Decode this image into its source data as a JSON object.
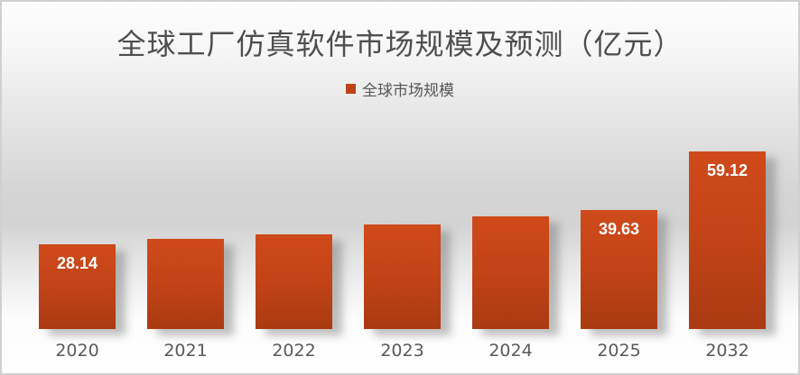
{
  "chart": {
    "title": "全球工厂仿真软件市场规模及预测（亿元）",
    "legend_label": "全球市场规模"
  },
  "colors": {
    "bar_gradient_top": "#cf4a1b",
    "bar_gradient_bottom": "#aa3a12",
    "legend_swatch": "#bc4318",
    "title_text": "#4e4e4e",
    "axis_text": "#5a5a5a",
    "value_label_text": "#ffffff",
    "frame_border": "#d0d0d0"
  },
  "chart_data": {
    "type": "bar",
    "title": "全球工厂仿真软件市场规模及预测（亿元）",
    "legend": [
      "全球市场规模"
    ],
    "legend_position": "top-center",
    "categories": [
      "2020",
      "2021",
      "2022",
      "2023",
      "2024",
      "2025",
      "2032"
    ],
    "values": [
      28.14,
      30.2,
      31.5,
      35.0,
      37.5,
      39.63,
      59.12
    ],
    "data_labels": [
      "28.14",
      "",
      "",
      "",
      "",
      "39.63",
      "59.12"
    ],
    "xlabel": "",
    "ylabel": "",
    "ylim": [
      0,
      62
    ],
    "grid": false,
    "axes_visible": false,
    "bar_color": "#c2451a"
  }
}
